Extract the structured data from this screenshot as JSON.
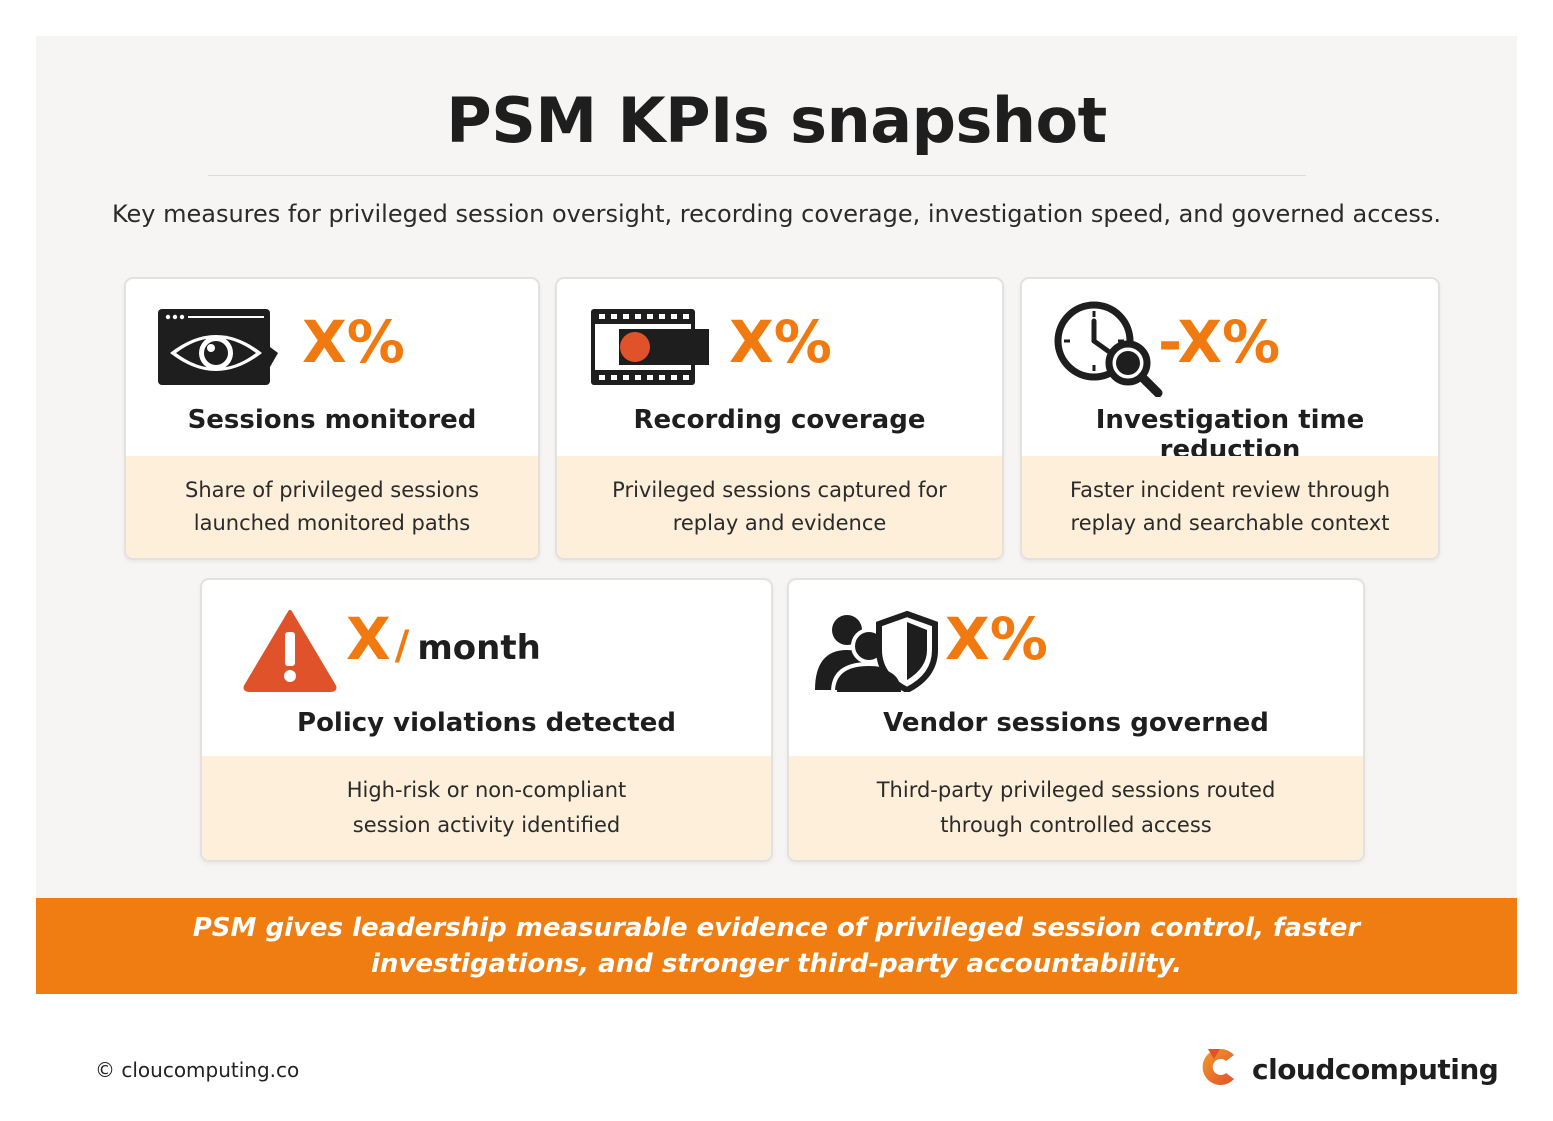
{
  "header": {
    "title": "PSM KPIs snapshot",
    "subtitle": "Key measures for privileged session oversight, recording coverage, investigation speed, and governed access."
  },
  "cards": [
    {
      "icon": "eye-browser-icon",
      "value": "X%",
      "label": "Sessions monitored",
      "description": "Share of privileged sessions\nlaunched monitored paths"
    },
    {
      "icon": "film-record-icon",
      "value": "X%",
      "label": "Recording coverage",
      "description": "Privileged sessions captured for\nreplay and evidence"
    },
    {
      "icon": "clock-magnifier-icon",
      "value": "-X%",
      "label": "Investigation time reduction",
      "description": "Faster incident review through\nreplay and searchable context"
    },
    {
      "icon": "warning-triangle-icon",
      "value": "X",
      "value_sep": "/",
      "value_unit": "month",
      "label": "Policy violations detected",
      "description": "High-risk or non-compliant\nsession activity identified"
    },
    {
      "icon": "users-shield-icon",
      "value": "X%",
      "label": "Vendor sessions governed",
      "description": "Third-party privileged sessions routed\nthrough controlled access"
    }
  ],
  "banner": {
    "text": "PSM gives leadership measurable evidence of privileged session control, faster investigations, and stronger third-party accountability."
  },
  "footer": {
    "copyright": "© cloucomputing.co",
    "brand_name": "cloudcomputing"
  },
  "colors": {
    "accent": "#f07a10",
    "banner": "#ef7d12",
    "description_bg": "#fdefd9",
    "icon_dark": "#1e1e1e",
    "warning": "#e0522a"
  }
}
